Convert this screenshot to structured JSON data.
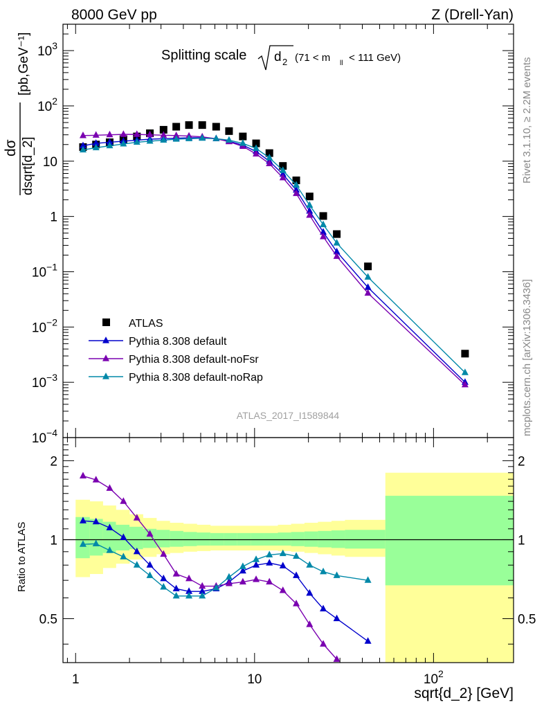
{
  "header": {
    "left": "8000 GeV pp",
    "right": "Z (Drell-Yan)"
  },
  "side_labels": {
    "rivet": "Rivet 3.1.10, ≥ 2.2M events",
    "mcplots": "mcplots.cern.ch [arXiv:1306.3436]"
  },
  "chart_data": [
    {
      "type": "scatter",
      "panel": "main",
      "title": "Splitting scale √d₂ (71 < m_ll < 111 GeV)",
      "title_main": "Splitting scale",
      "title_sqrt": "d",
      "title_sub": "2",
      "title_range_a": "(71 < m",
      "title_range_sub": "ll",
      "title_range_b": " < 111 GeV)",
      "watermark": "ATLAS_2017_I1589844",
      "ylabel_num": "dσ",
      "ylabel_den": "dsqrt[d_2]",
      "ylabel_unit": "[pb,GeV⁻¹]",
      "xscale": "log",
      "yscale": "log",
      "xlim": [
        0.85,
        280
      ],
      "ylim": [
        0.0001,
        3000
      ],
      "grid": false,
      "legend_position": "bottom-left",
      "yticks": [
        {
          "v": 0.0001,
          "base": "10",
          "exp": "−4"
        },
        {
          "v": 0.001,
          "base": "10",
          "exp": "−3"
        },
        {
          "v": 0.01,
          "base": "10",
          "exp": "−2"
        },
        {
          "v": 0.1,
          "base": "10",
          "exp": "−1"
        },
        {
          "v": 1,
          "base": "1",
          "exp": ""
        },
        {
          "v": 10,
          "base": "10",
          "exp": ""
        },
        {
          "v": 100,
          "base": "10",
          "exp": "2"
        },
        {
          "v": 1000,
          "base": "10",
          "exp": "3"
        }
      ],
      "series": [
        {
          "name": "ATLAS",
          "kind": "data",
          "marker": "square",
          "color": "#000000",
          "x": [
            1.1,
            1.3,
            1.55,
            1.85,
            2.2,
            2.6,
            3.1,
            3.65,
            4.3,
            5.1,
            6.1,
            7.2,
            8.6,
            10.2,
            12.1,
            14.4,
            17.1,
            20.3,
            24.2,
            28.8,
            43.0,
            150.0
          ],
          "y": [
            18,
            20,
            22,
            25,
            28,
            32,
            37,
            42,
            45,
            45,
            42,
            35,
            28,
            21,
            14,
            8.2,
            4.5,
            2.3,
            1.02,
            0.48,
            0.125,
            0.0033
          ]
        },
        {
          "name": "Pythia 8.308 default",
          "kind": "mc",
          "marker": "triangle",
          "color": "#0000CC",
          "x": [
            1.1,
            1.3,
            1.55,
            1.85,
            2.2,
            2.6,
            3.1,
            3.65,
            4.3,
            5.1,
            6.1,
            7.2,
            8.6,
            10.2,
            12.1,
            14.4,
            17.1,
            20.3,
            24.2,
            28.8,
            43.0,
            150.0
          ],
          "y": [
            19,
            21,
            22,
            23,
            24,
            25,
            25.5,
            26,
            26.5,
            26.5,
            25.5,
            23,
            19.5,
            15,
            10,
            5.8,
            3.0,
            1.25,
            0.52,
            0.23,
            0.052,
            0.001
          ]
        },
        {
          "name": "Pythia 8.308 default-noFsr",
          "kind": "mc",
          "marker": "triangle",
          "color": "#7A00B0",
          "x": [
            1.1,
            1.3,
            1.55,
            1.85,
            2.2,
            2.6,
            3.1,
            3.65,
            4.3,
            5.1,
            6.1,
            7.2,
            8.6,
            10.2,
            12.1,
            14.4,
            17.1,
            20.3,
            24.2,
            28.8,
            43.0,
            150.0
          ],
          "y": [
            29,
            29.5,
            30,
            30.5,
            30.5,
            30,
            29.5,
            29,
            28.5,
            27.5,
            25.5,
            22.5,
            18.5,
            13.5,
            9.0,
            5.0,
            2.6,
            1.05,
            0.43,
            0.19,
            0.041,
            0.0009
          ]
        },
        {
          "name": "Pythia 8.308 default-noRap",
          "kind": "mc",
          "marker": "triangle",
          "color": "#0088A8",
          "x": [
            1.1,
            1.3,
            1.55,
            1.85,
            2.2,
            2.6,
            3.1,
            3.65,
            4.3,
            5.1,
            6.1,
            7.2,
            8.6,
            10.2,
            12.1,
            14.4,
            17.1,
            20.3,
            24.2,
            28.8,
            43.0,
            150.0
          ],
          "y": [
            16,
            17.5,
            19,
            20.5,
            22,
            23,
            24,
            25,
            25.5,
            26,
            25.5,
            24,
            21,
            17,
            11.5,
            6.8,
            3.7,
            1.6,
            0.71,
            0.33,
            0.08,
            0.0015
          ]
        }
      ]
    },
    {
      "type": "line",
      "panel": "ratio",
      "ylabel": "Ratio to ATLAS",
      "xlabel": "sqrt{d_2} [GeV]",
      "xscale": "log",
      "xlim": [
        0.85,
        280
      ],
      "ylim": [
        0.34,
        2.45
      ],
      "yscale": "log",
      "yticks": [
        {
          "v": 0.5,
          "label": "0.5"
        },
        {
          "v": 1,
          "label": "1"
        },
        {
          "v": 2,
          "label": "2"
        }
      ],
      "xticks": [
        {
          "v": 1,
          "base": "1",
          "exp": ""
        },
        {
          "v": 10,
          "base": "10",
          "exp": ""
        },
        {
          "v": 100,
          "base": "10",
          "exp": "2"
        }
      ],
      "bin_edges": [
        1.0,
        1.2,
        1.42,
        1.68,
        2.0,
        2.38,
        2.83,
        3.36,
        4.0,
        4.76,
        5.66,
        6.73,
        8.0,
        9.51,
        11.3,
        13.5,
        16.0,
        19.0,
        22.6,
        26.9,
        32.0,
        53.8,
        280
      ],
      "band_yellow": [
        [
          0.72,
          1.42
        ],
        [
          0.74,
          1.4
        ],
        [
          0.78,
          1.35
        ],
        [
          0.81,
          1.3
        ],
        [
          0.84,
          1.25
        ],
        [
          0.86,
          1.21
        ],
        [
          0.88,
          1.18
        ],
        [
          0.89,
          1.16
        ],
        [
          0.9,
          1.15
        ],
        [
          0.905,
          1.14
        ],
        [
          0.91,
          1.13
        ],
        [
          0.91,
          1.13
        ],
        [
          0.91,
          1.13
        ],
        [
          0.91,
          1.13
        ],
        [
          0.91,
          1.13
        ],
        [
          0.905,
          1.14
        ],
        [
          0.9,
          1.15
        ],
        [
          0.89,
          1.16
        ],
        [
          0.88,
          1.17
        ],
        [
          0.87,
          1.18
        ],
        [
          0.86,
          1.19
        ],
        [
          0.34,
          1.8
        ]
      ],
      "band_green": [
        [
          0.85,
          1.22
        ],
        [
          0.87,
          1.2
        ],
        [
          0.89,
          1.17
        ],
        [
          0.91,
          1.14
        ],
        [
          0.92,
          1.12
        ],
        [
          0.93,
          1.1
        ],
        [
          0.935,
          1.09
        ],
        [
          0.94,
          1.08
        ],
        [
          0.945,
          1.07
        ],
        [
          0.95,
          1.065
        ],
        [
          0.95,
          1.06
        ],
        [
          0.95,
          1.06
        ],
        [
          0.95,
          1.06
        ],
        [
          0.95,
          1.06
        ],
        [
          0.95,
          1.06
        ],
        [
          0.95,
          1.065
        ],
        [
          0.945,
          1.07
        ],
        [
          0.94,
          1.075
        ],
        [
          0.935,
          1.08
        ],
        [
          0.93,
          1.085
        ],
        [
          0.925,
          1.09
        ],
        [
          0.67,
          1.47
        ]
      ],
      "series": [
        {
          "name": "Pythia 8.308 default",
          "color": "#0000CC",
          "x": [
            1.1,
            1.3,
            1.55,
            1.85,
            2.2,
            2.6,
            3.1,
            3.65,
            4.3,
            5.1,
            6.1,
            7.2,
            8.6,
            10.2,
            12.1,
            14.4,
            17.1,
            20.3,
            24.2,
            28.8,
            43.0
          ],
          "y": [
            1.18,
            1.17,
            1.11,
            1.02,
            0.9,
            0.8,
            0.71,
            0.65,
            0.635,
            0.635,
            0.65,
            0.69,
            0.76,
            0.8,
            0.815,
            0.795,
            0.73,
            0.625,
            0.545,
            0.5,
            0.41
          ]
        },
        {
          "name": "Pythia 8.308 default-noFsr",
          "color": "#7A00B0",
          "x": [
            1.1,
            1.3,
            1.55,
            1.85,
            2.2,
            2.6,
            3.1,
            3.65,
            4.3,
            5.1,
            6.1,
            7.2,
            8.6,
            10.2,
            12.1,
            14.4,
            17.1,
            20.3,
            24.2,
            28.8
          ],
          "y": [
            1.75,
            1.69,
            1.57,
            1.4,
            1.21,
            1.05,
            0.88,
            0.74,
            0.71,
            0.665,
            0.665,
            0.68,
            0.69,
            0.705,
            0.69,
            0.64,
            0.57,
            0.475,
            0.4,
            0.35
          ]
        },
        {
          "name": "Pythia 8.308 default-noRap",
          "color": "#0088A8",
          "x": [
            1.1,
            1.3,
            1.55,
            1.85,
            2.2,
            2.6,
            3.1,
            3.65,
            4.3,
            5.1,
            6.1,
            7.2,
            8.6,
            10.2,
            12.1,
            14.4,
            17.1,
            20.3,
            24.2,
            28.8,
            43.0
          ],
          "y": [
            0.96,
            0.965,
            0.91,
            0.86,
            0.8,
            0.73,
            0.66,
            0.61,
            0.61,
            0.61,
            0.655,
            0.72,
            0.79,
            0.84,
            0.875,
            0.885,
            0.865,
            0.8,
            0.755,
            0.73,
            0.7
          ]
        }
      ]
    }
  ]
}
